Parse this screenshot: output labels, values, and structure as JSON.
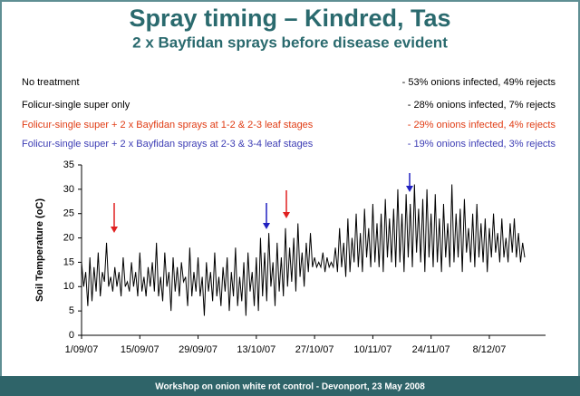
{
  "header": {
    "title": "Spray timing – Kindred, Tas",
    "subtitle": "2 x Bayfidan sprays before disease evident"
  },
  "treatments": [
    {
      "name": "No treatment",
      "result": "- 53% onions infected, 49% rejects",
      "color": "#000000"
    },
    {
      "name": "Folicur-single super only",
      "result": "- 28% onions infected, 7% rejects",
      "color": "#000000"
    },
    {
      "name": "Folicur-single super + 2 x Bayfidan sprays at 1-2 & 2-3 leaf stages",
      "result": "- 29% onions infected, 4% rejects",
      "color": "#e03c14"
    },
    {
      "name": "Folicur-single super + 2 x Bayfidan sprays at 2-3 & 3-4 leaf stages",
      "result": "- 19% onions infected, 3% rejects",
      "color": "#3c3cb4"
    }
  ],
  "footer": "Workshop on onion white rot control - Devonport, 23 May 2008",
  "chart_data": {
    "type": "line",
    "y_label": "Soil Temperature (oC)",
    "color": "#000000",
    "ylim": [
      0,
      35
    ],
    "yticks": [
      0,
      5,
      10,
      15,
      20,
      25,
      30,
      35
    ],
    "grid": false,
    "categories": [
      "1/09/07",
      null,
      null,
      null,
      null,
      null,
      null,
      null,
      null,
      null,
      null,
      null,
      null,
      null,
      null,
      null,
      null,
      null,
      null,
      null,
      null,
      null,
      null,
      null,
      null,
      null,
      null,
      null,
      "15/09/07",
      null,
      null,
      null,
      null,
      null,
      null,
      null,
      null,
      null,
      null,
      null,
      null,
      null,
      null,
      null,
      null,
      null,
      null,
      null,
      null,
      null,
      null,
      null,
      null,
      null,
      null,
      null,
      "29/09/07",
      null,
      null,
      null,
      null,
      null,
      null,
      null,
      null,
      null,
      null,
      null,
      null,
      null,
      null,
      null,
      null,
      null,
      null,
      null,
      null,
      null,
      null,
      null,
      null,
      null,
      null,
      null,
      "13/10/07",
      null,
      null,
      null,
      null,
      null,
      null,
      null,
      null,
      null,
      null,
      null,
      null,
      null,
      null,
      null,
      null,
      null,
      null,
      null,
      null,
      null,
      null,
      null,
      null,
      null,
      null,
      null,
      "27/10/07",
      null,
      null,
      null,
      null,
      null,
      null,
      null,
      null,
      null,
      null,
      null,
      null,
      null,
      null,
      null,
      null,
      null,
      null,
      null,
      null,
      null,
      null,
      null,
      null,
      null,
      null,
      null,
      "10/11/07",
      null,
      null,
      null,
      null,
      null,
      null,
      null,
      null,
      null,
      null,
      null,
      null,
      null,
      null,
      null,
      null,
      null,
      null,
      null,
      null,
      null,
      null,
      null,
      null,
      null,
      null,
      null,
      "24/11/07",
      null,
      null,
      null,
      null,
      null,
      null,
      null,
      null,
      null,
      null,
      null,
      null,
      null,
      null,
      null,
      null,
      null,
      null,
      null,
      null,
      null,
      null,
      null,
      null,
      null,
      null,
      null,
      "8/12/07",
      null,
      null,
      null,
      null,
      null,
      null,
      null,
      null,
      null,
      null,
      null,
      null,
      null,
      null,
      null,
      null,
      null
    ],
    "values": [
      15,
      10,
      13,
      6,
      16,
      7,
      14,
      9,
      17,
      8,
      13,
      11,
      19,
      10,
      12,
      9,
      14,
      10,
      13,
      8,
      16,
      10,
      11,
      9,
      15,
      10,
      13,
      8,
      17,
      9,
      12,
      8,
      14,
      10,
      15,
      9,
      19,
      8,
      12,
      7,
      17,
      10,
      13,
      5,
      16,
      9,
      14,
      8,
      15,
      11,
      12,
      6,
      18,
      8,
      13,
      9,
      16,
      8,
      12,
      4,
      15,
      9,
      13,
      7,
      17,
      8,
      12,
      6,
      14,
      9,
      16,
      5,
      13,
      8,
      18,
      6,
      12,
      7,
      15,
      4,
      17,
      9,
      13,
      6,
      16,
      5,
      20,
      8,
      17,
      7,
      21,
      10,
      15,
      6,
      19,
      9,
      16,
      8,
      22,
      10,
      18,
      11,
      20,
      9,
      23,
      12,
      17,
      10,
      19,
      13,
      21,
      14,
      16,
      14,
      15,
      14,
      17,
      13,
      16,
      14,
      15,
      14,
      18,
      13,
      22,
      14,
      19,
      12,
      24,
      13,
      20,
      15,
      25,
      14,
      21,
      13,
      26,
      16,
      22,
      14,
      27,
      15,
      23,
      14,
      25,
      13,
      28,
      16,
      24,
      15,
      26,
      14,
      30,
      15,
      25,
      13,
      29,
      16,
      27,
      14,
      31,
      17,
      26,
      15,
      28,
      13,
      30,
      16,
      25,
      14,
      29,
      15,
      24,
      13,
      27,
      16,
      23,
      14,
      31,
      15,
      25,
      16,
      26,
      13,
      28,
      17,
      22,
      15,
      25,
      14,
      27,
      16,
      23,
      15,
      24,
      13,
      22,
      16,
      25,
      17,
      21,
      15,
      24,
      16,
      20,
      15,
      23,
      17,
      24,
      16,
      21,
      15,
      19,
      16
    ]
  }
}
